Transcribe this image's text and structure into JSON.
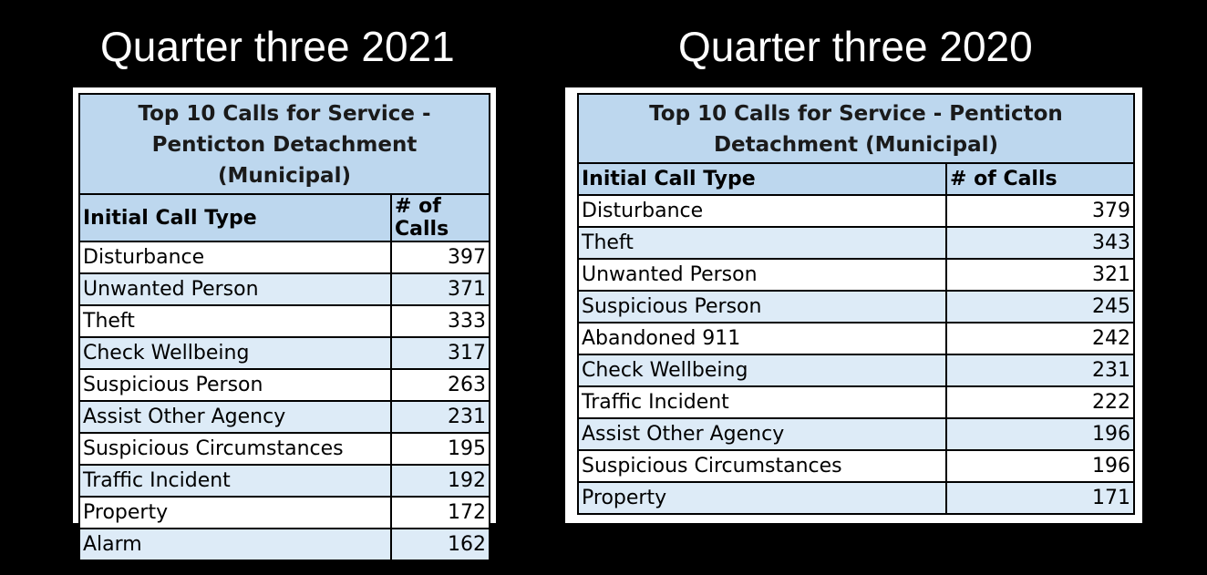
{
  "left": {
    "heading": "Quarter three 2021",
    "table_title": "Top 10 Calls for Service - Penticton Detachment (Municipal)",
    "col_type": "Initial Call Type",
    "col_calls": "# of Calls",
    "rows": [
      {
        "type": "Disturbance",
        "calls": "397"
      },
      {
        "type": "Unwanted Person",
        "calls": "371"
      },
      {
        "type": "Theft",
        "calls": "333"
      },
      {
        "type": "Check Wellbeing",
        "calls": "317"
      },
      {
        "type": "Suspicious Person",
        "calls": "263"
      },
      {
        "type": "Assist Other Agency",
        "calls": "231"
      },
      {
        "type": "Suspicious Circumstances",
        "calls": "195"
      },
      {
        "type": "Traffic Incident",
        "calls": "192"
      },
      {
        "type": "Property",
        "calls": "172"
      },
      {
        "type": "Alarm",
        "calls": "162"
      }
    ]
  },
  "right": {
    "heading": "Quarter three 2020",
    "table_title": "Top 10 Calls for Service - Penticton Detachment (Municipal)",
    "col_type": "Initial Call Type",
    "col_calls": "# of Calls",
    "rows": [
      {
        "type": "Disturbance",
        "calls": "379"
      },
      {
        "type": "Theft",
        "calls": "343"
      },
      {
        "type": "Unwanted Person",
        "calls": "321"
      },
      {
        "type": "Suspicious Person",
        "calls": "245"
      },
      {
        "type": "Abandoned 911",
        "calls": "242"
      },
      {
        "type": "Check Wellbeing",
        "calls": "231"
      },
      {
        "type": "Traffic Incident",
        "calls": "222"
      },
      {
        "type": "Assist Other Agency",
        "calls": "196"
      },
      {
        "type": "Suspicious Circumstances",
        "calls": "196"
      },
      {
        "type": "Property",
        "calls": "171"
      }
    ]
  }
}
